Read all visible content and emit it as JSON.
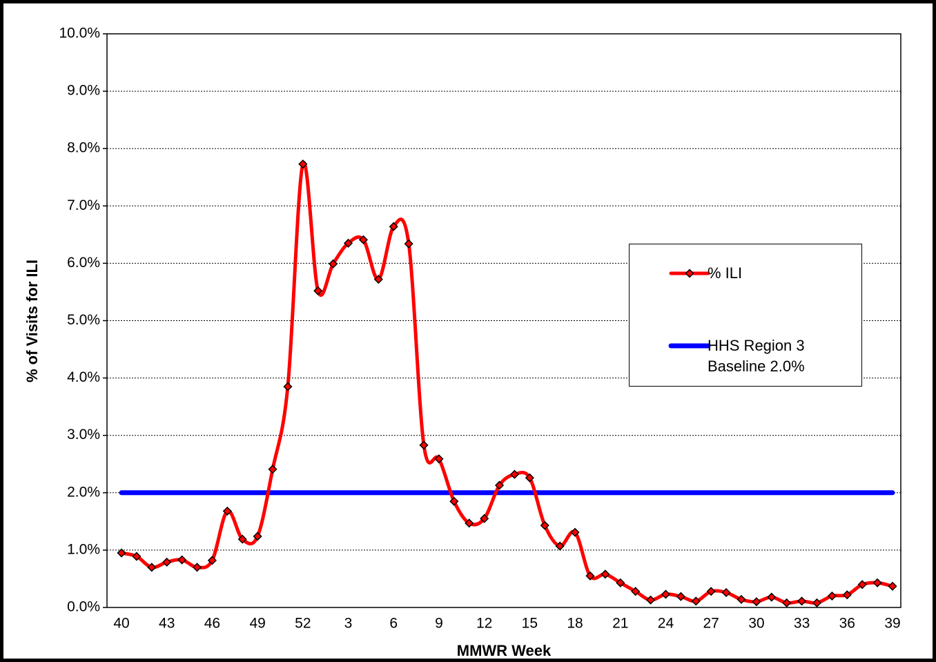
{
  "chart_data": {
    "type": "line",
    "x_label": "MMWR Week",
    "y_label": "% of Visits for ILI",
    "categories": [
      "40",
      null,
      null,
      "43",
      null,
      null,
      "46",
      null,
      null,
      "49",
      null,
      null,
      "52",
      null,
      null,
      "3",
      null,
      null,
      "6",
      null,
      null,
      "9",
      null,
      null,
      "12",
      null,
      null,
      "15",
      null,
      null,
      "18",
      null,
      null,
      "21",
      null,
      null,
      "24",
      null,
      null,
      "27",
      null,
      null,
      "30",
      null,
      null,
      "33",
      null,
      null,
      "36",
      null,
      null,
      "39"
    ],
    "series": [
      {
        "name": "% ILI",
        "color": "#ff0000",
        "smooth": true,
        "marker": "diamond",
        "values": [
          0.95,
          0.89,
          0.7,
          0.79,
          0.83,
          0.7,
          0.82,
          1.68,
          1.19,
          1.24,
          2.41,
          3.85,
          7.73,
          5.52,
          5.99,
          6.35,
          6.41,
          5.72,
          6.64,
          6.34,
          2.83,
          2.59,
          1.85,
          1.47,
          1.55,
          2.13,
          2.32,
          2.26,
          1.43,
          1.07,
          1.31,
          0.55,
          0.58,
          0.43,
          0.28,
          0.13,
          0.23,
          0.19,
          0.11,
          0.28,
          0.26,
          0.14,
          0.1,
          0.18,
          0.08,
          0.11,
          0.08,
          0.2,
          0.22,
          0.4,
          0.43,
          0.37
        ]
      },
      {
        "name": "HHS Region 3 Baseline 2.0%",
        "color": "#0000ff",
        "smooth": false,
        "marker": "none",
        "values": [
          2,
          2,
          2,
          2,
          2,
          2,
          2,
          2,
          2,
          2,
          2,
          2,
          2,
          2,
          2,
          2,
          2,
          2,
          2,
          2,
          2,
          2,
          2,
          2,
          2,
          2,
          2,
          2,
          2,
          2,
          2,
          2,
          2,
          2,
          2,
          2,
          2,
          2,
          2,
          2,
          2,
          2,
          2,
          2,
          2,
          2,
          2,
          2,
          2,
          2,
          2,
          2
        ]
      }
    ],
    "ylim": [
      0,
      10
    ],
    "yticks": [
      {
        "value": 0,
        "label": "0.0%"
      },
      {
        "value": 1,
        "label": "1.0%"
      },
      {
        "value": 2,
        "label": "2.0%"
      },
      {
        "value": 3,
        "label": "3.0%"
      },
      {
        "value": 4,
        "label": "4.0%"
      },
      {
        "value": 5,
        "label": "5.0%"
      },
      {
        "value": 6,
        "label": "6.0%"
      },
      {
        "value": 7,
        "label": "7.0%"
      },
      {
        "value": 8,
        "label": "8.0%"
      },
      {
        "value": 9,
        "label": "9.0%"
      },
      {
        "value": 10,
        "label": "10.0%"
      }
    ],
    "grid": true,
    "legend": "right"
  }
}
